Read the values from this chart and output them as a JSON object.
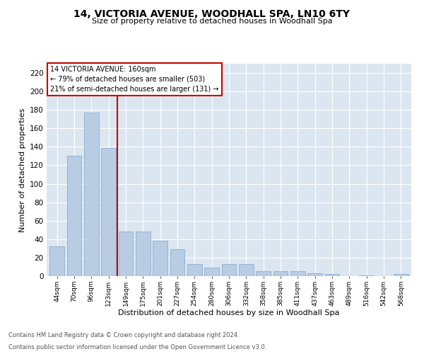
{
  "title": "14, VICTORIA AVENUE, WOODHALL SPA, LN10 6TY",
  "subtitle": "Size of property relative to detached houses in Woodhall Spa",
  "xlabel": "Distribution of detached houses by size in Woodhall Spa",
  "ylabel": "Number of detached properties",
  "bar_color": "#b8cce4",
  "bar_edge_color": "#7ba7c9",
  "categories": [
    "44sqm",
    "70sqm",
    "96sqm",
    "123sqm",
    "149sqm",
    "175sqm",
    "201sqm",
    "227sqm",
    "254sqm",
    "280sqm",
    "306sqm",
    "332sqm",
    "358sqm",
    "385sqm",
    "411sqm",
    "437sqm",
    "463sqm",
    "489sqm",
    "516sqm",
    "542sqm",
    "568sqm"
  ],
  "values": [
    32,
    130,
    177,
    139,
    48,
    48,
    38,
    29,
    13,
    9,
    13,
    13,
    5,
    5,
    5,
    3,
    2,
    0,
    1,
    0,
    2
  ],
  "annotation_text_lines": [
    "14 VICTORIA AVENUE: 160sqm",
    "← 79% of detached houses are smaller (503)",
    "21% of semi-detached houses are larger (131) →"
  ],
  "annotation_box_color": "#ffffff",
  "annotation_box_edge": "#cc0000",
  "vline_color": "#cc0000",
  "ylim": [
    0,
    230
  ],
  "yticks": [
    0,
    20,
    40,
    60,
    80,
    100,
    120,
    140,
    160,
    180,
    200,
    220
  ],
  "footer_line1": "Contains HM Land Registry data © Crown copyright and database right 2024.",
  "footer_line2": "Contains public sector information licensed under the Open Government Licence v3.0.",
  "plot_bg_color": "#dce6f1"
}
